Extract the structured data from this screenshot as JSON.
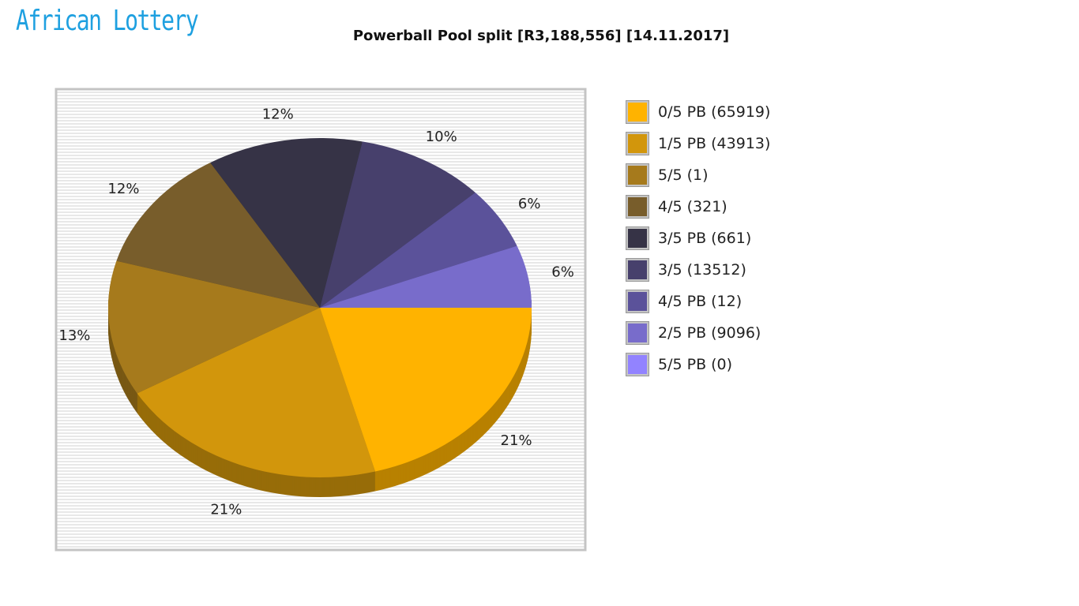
{
  "logo": {
    "text": "African Lottery"
  },
  "chart_data": {
    "type": "pie",
    "title": "Powerball Pool split [R3,188,556] [14.11.2017]",
    "three_d": true,
    "legend_position": "right",
    "start_angle": "east, clockwise",
    "slices": [
      {
        "label": "0/5 PB (65919)",
        "percent": 21,
        "color": "#FFB300"
      },
      {
        "label": "1/5 PB (43913)",
        "percent": 21,
        "color": "#D2960C"
      },
      {
        "label": "5/5 (1)",
        "percent": 13,
        "color": "#A67A1C"
      },
      {
        "label": "4/5 (321)",
        "percent": 12,
        "color": "#785D2B"
      },
      {
        "label": "3/5 PB (661)",
        "percent": 12,
        "color": "#363346"
      },
      {
        "label": "3/5 (13512)",
        "percent": 10,
        "color": "#47406C"
      },
      {
        "label": "4/5 PB (12)",
        "percent": 6,
        "color": "#5B529A"
      },
      {
        "label": "2/5 PB (9096)",
        "percent": 6,
        "color": "#786CCB"
      },
      {
        "label": "5/5 PB (0)",
        "percent": 0,
        "color": "#9283FF"
      }
    ]
  }
}
